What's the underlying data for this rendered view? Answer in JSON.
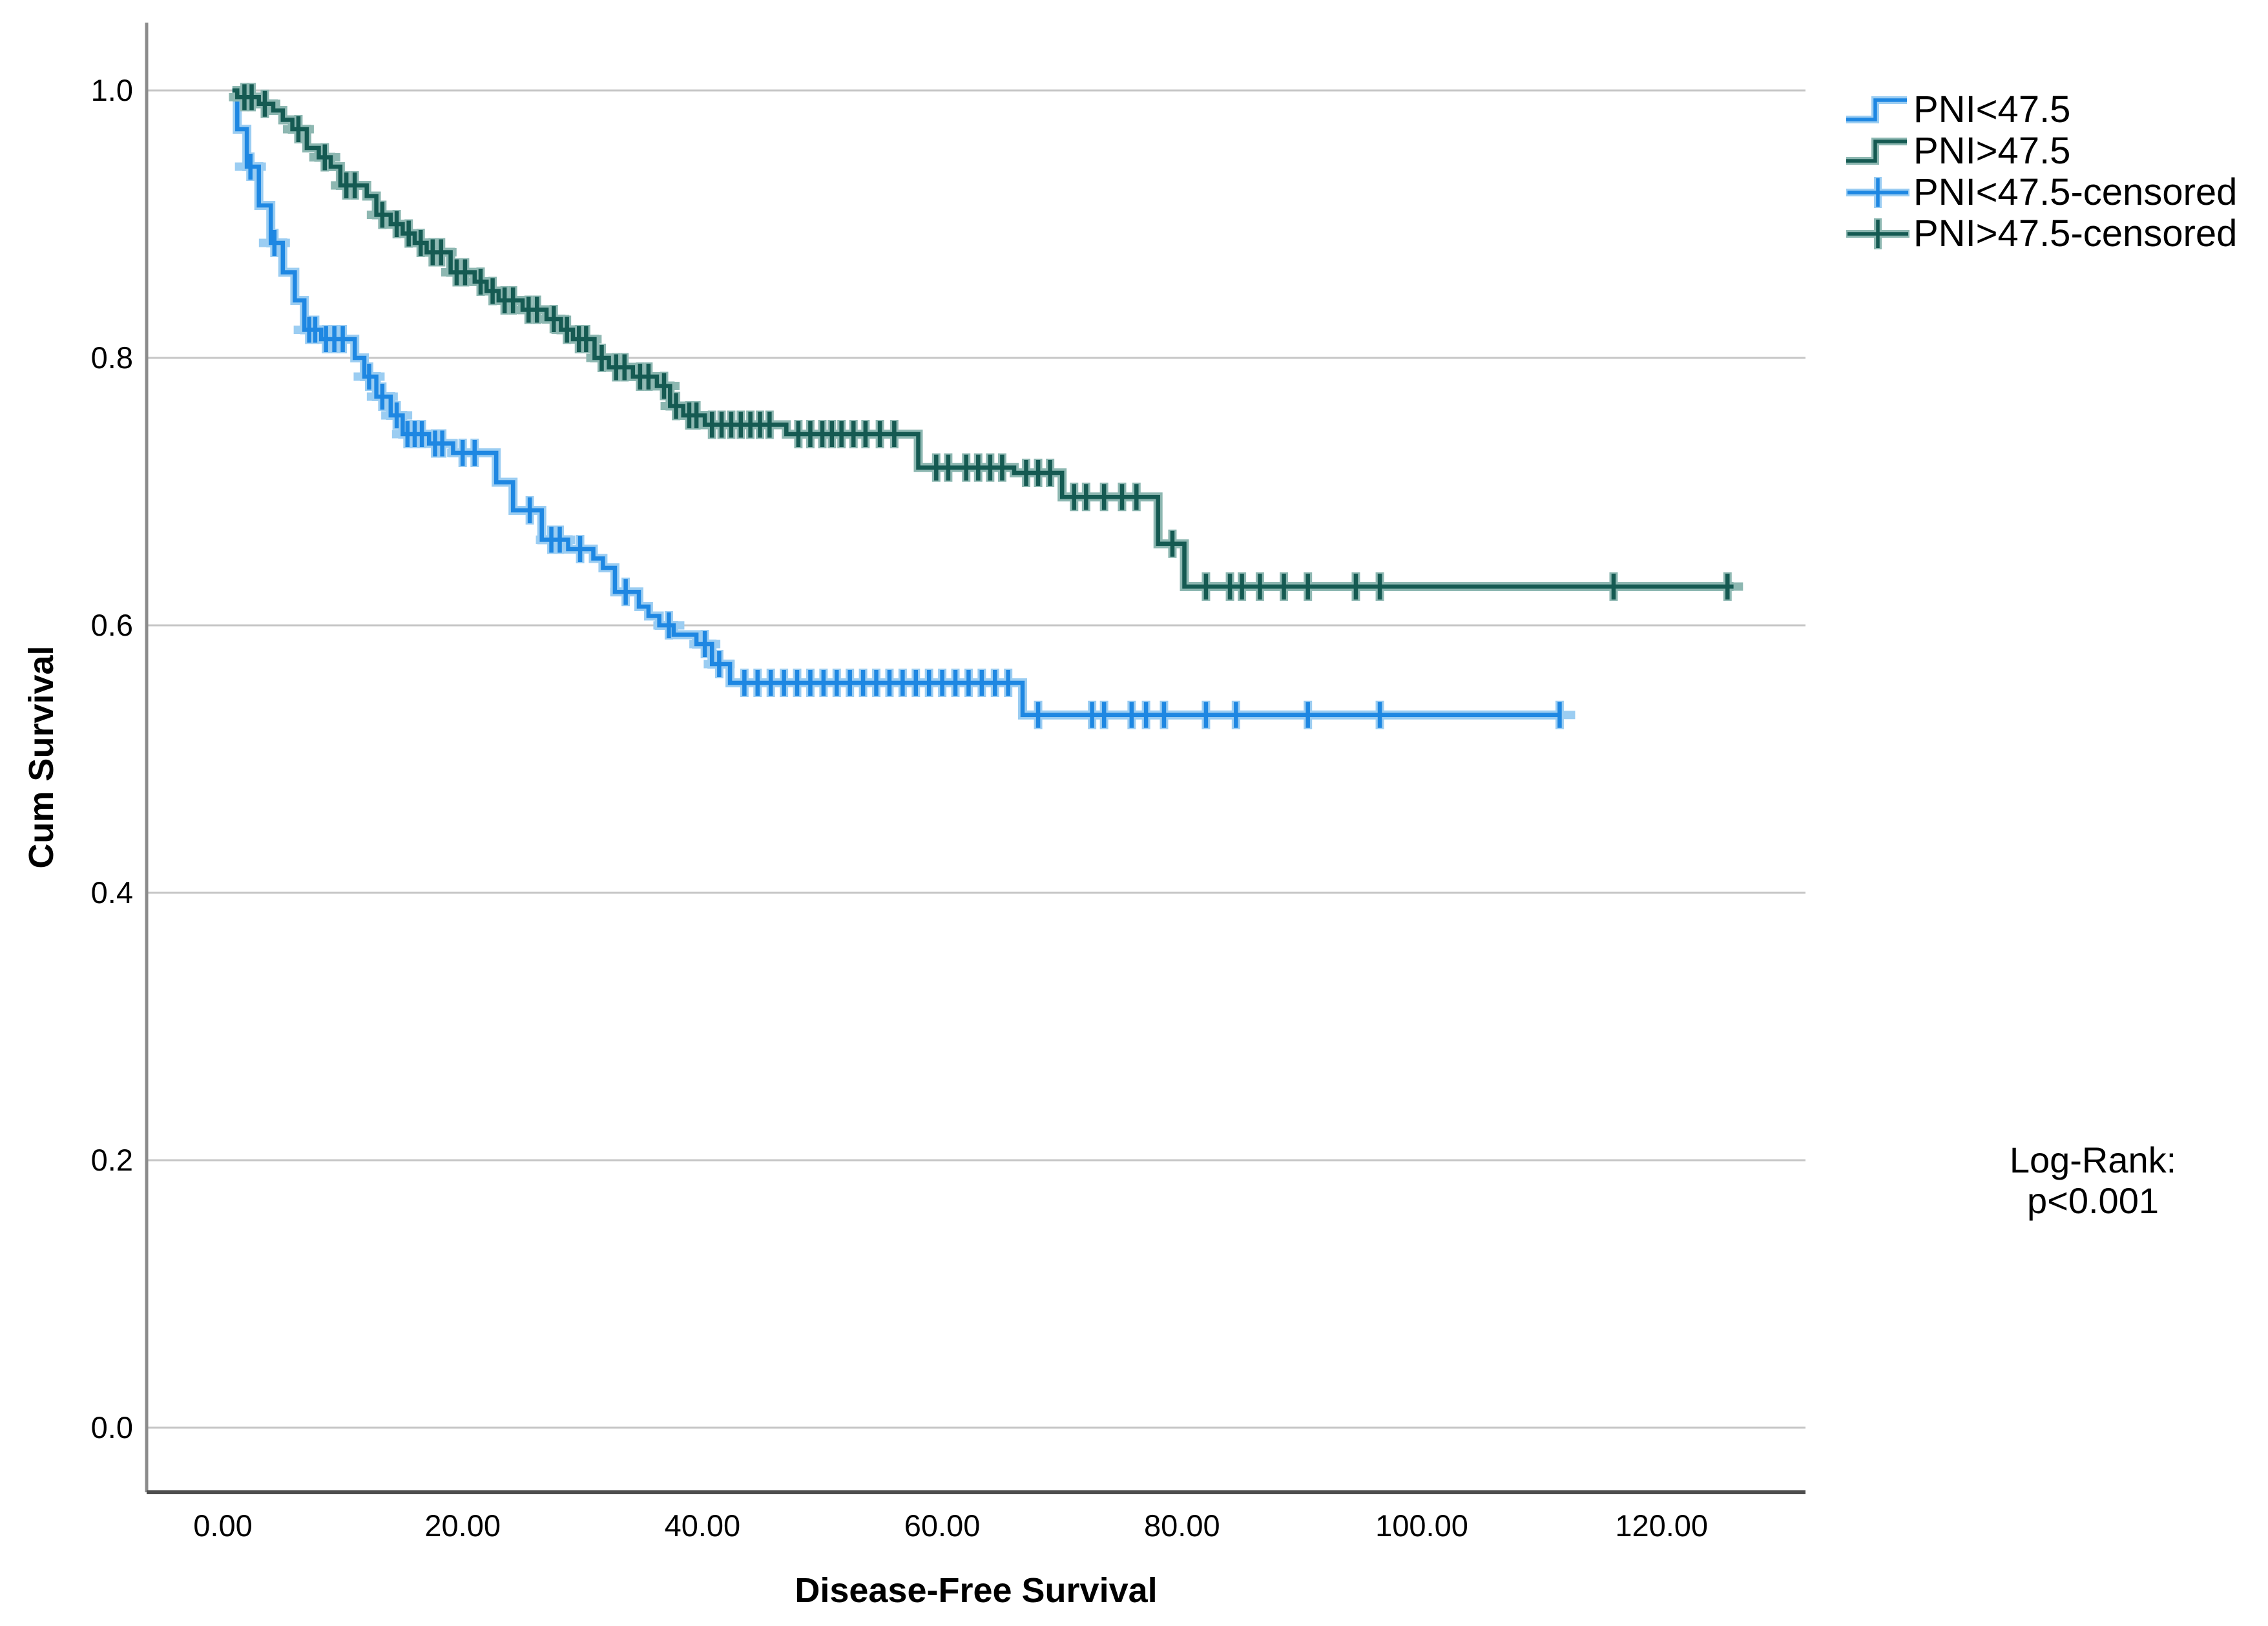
{
  "chart_data": {
    "type": "line",
    "subtype": "kaplan-meier-step",
    "title": "",
    "xlabel": "Disease-Free Survival",
    "ylabel": "Cum Survival",
    "xlim": [
      -6.4,
      132
    ],
    "ylim": [
      -0.048,
      1.05
    ],
    "grid": "horizontal-gridlines",
    "legend_position": "top-right",
    "x_ticks": [
      0,
      20,
      40,
      60,
      80,
      100,
      120
    ],
    "x_tick_labels": [
      "0.00",
      "20.00",
      "40.00",
      "60.00",
      "80.00",
      "100.00",
      "120.00"
    ],
    "y_ticks": [
      1.0,
      0.8,
      0.6,
      0.4,
      0.2,
      0.0
    ],
    "y_tick_labels": [
      "1.0",
      "0.8",
      "0.6",
      "0.4",
      "0.2",
      "0.0"
    ],
    "annotation": {
      "lines": [
        "Log-Rank:",
        "p<0.001"
      ]
    },
    "colors": {
      "blue_core": "#1e87e2",
      "blue_halo": "#9bcdf2",
      "green_core": "#155a52",
      "green_halo": "#8db7b1",
      "gridline": "#c6c6c6",
      "left_axis": "#8c8c8c",
      "bottom_axis": "#4d4d4d",
      "text": "#000000"
    },
    "legend": [
      {
        "label": "PNI<47.5",
        "marker": "step",
        "series": 0
      },
      {
        "label": "PNI>47.5",
        "marker": "step",
        "series": 1
      },
      {
        "label": "PNI<47.5-censored",
        "marker": "plus",
        "series": 0
      },
      {
        "label": "PNI>47.5-censored",
        "marker": "plus",
        "series": 1
      }
    ],
    "series": [
      {
        "name": "PNI<47.5",
        "core": "#1e87e2",
        "halo": "#9bcdf2",
        "start": [
          0.8,
          1.0
        ],
        "end_t": 111.5,
        "steps": [
          [
            1.2,
            0.971
          ],
          [
            2.0,
            0.943
          ],
          [
            3.0,
            0.914
          ],
          [
            4.0,
            0.886
          ],
          [
            5.0,
            0.864
          ],
          [
            6.0,
            0.843
          ],
          [
            6.8,
            0.821
          ],
          [
            8.2,
            0.814
          ],
          [
            11.0,
            0.8
          ],
          [
            11.8,
            0.786
          ],
          [
            12.8,
            0.771
          ],
          [
            14.0,
            0.757
          ],
          [
            15.0,
            0.743
          ],
          [
            17.2,
            0.736
          ],
          [
            19.2,
            0.729
          ],
          [
            22.8,
            0.707
          ],
          [
            24.2,
            0.686
          ],
          [
            26.6,
            0.664
          ],
          [
            28.8,
            0.657
          ],
          [
            30.9,
            0.65
          ],
          [
            31.7,
            0.643
          ],
          [
            32.7,
            0.625
          ],
          [
            34.7,
            0.614
          ],
          [
            35.5,
            0.607
          ],
          [
            36.4,
            0.6
          ],
          [
            37.6,
            0.593
          ],
          [
            39.5,
            0.586
          ],
          [
            40.8,
            0.571
          ],
          [
            42.3,
            0.557
          ],
          [
            66.7,
            0.533
          ]
        ],
        "censored": [
          [
            2.3,
            0.943
          ],
          [
            4.3,
            0.886
          ],
          [
            7.2,
            0.821
          ],
          [
            7.7,
            0.821
          ],
          [
            8.6,
            0.814
          ],
          [
            9.3,
            0.814
          ],
          [
            10.0,
            0.814
          ],
          [
            12.2,
            0.786
          ],
          [
            13.3,
            0.771
          ],
          [
            14.5,
            0.757
          ],
          [
            15.4,
            0.743
          ],
          [
            16.0,
            0.743
          ],
          [
            16.6,
            0.743
          ],
          [
            17.7,
            0.736
          ],
          [
            18.3,
            0.736
          ],
          [
            20.0,
            0.729
          ],
          [
            21.0,
            0.729
          ],
          [
            25.6,
            0.686
          ],
          [
            27.4,
            0.664
          ],
          [
            28.1,
            0.664
          ],
          [
            29.8,
            0.657
          ],
          [
            33.6,
            0.625
          ],
          [
            37.2,
            0.6
          ],
          [
            40.2,
            0.586
          ],
          [
            41.4,
            0.571
          ],
          [
            43.5,
            0.557
          ],
          [
            44.6,
            0.557
          ],
          [
            45.7,
            0.557
          ],
          [
            46.8,
            0.557
          ],
          [
            47.9,
            0.557
          ],
          [
            49.0,
            0.557
          ],
          [
            50.1,
            0.557
          ],
          [
            51.2,
            0.557
          ],
          [
            52.3,
            0.557
          ],
          [
            53.4,
            0.557
          ],
          [
            54.5,
            0.557
          ],
          [
            55.6,
            0.557
          ],
          [
            56.7,
            0.557
          ],
          [
            57.8,
            0.557
          ],
          [
            58.9,
            0.557
          ],
          [
            60.0,
            0.557
          ],
          [
            61.1,
            0.557
          ],
          [
            62.2,
            0.557
          ],
          [
            63.3,
            0.557
          ],
          [
            64.4,
            0.557
          ],
          [
            65.5,
            0.557
          ],
          [
            68.0,
            0.533
          ],
          [
            72.5,
            0.533
          ],
          [
            73.5,
            0.533
          ],
          [
            75.8,
            0.533
          ],
          [
            77.0,
            0.533
          ],
          [
            78.5,
            0.533
          ],
          [
            82.0,
            0.533
          ],
          [
            84.5,
            0.533
          ],
          [
            90.5,
            0.533
          ],
          [
            96.5,
            0.533
          ],
          [
            111.5,
            0.533
          ]
        ]
      },
      {
        "name": "PNI>47.5",
        "core": "#155a52",
        "halo": "#8db7b1",
        "start": [
          0.8,
          1.0
        ],
        "end_t": 126,
        "steps": [
          [
            1.2,
            0.995
          ],
          [
            3.0,
            0.99
          ],
          [
            4.2,
            0.985
          ],
          [
            5.0,
            0.978
          ],
          [
            5.8,
            0.971
          ],
          [
            7.0,
            0.957
          ],
          [
            8.0,
            0.95
          ],
          [
            9.0,
            0.943
          ],
          [
            9.8,
            0.929
          ],
          [
            12.0,
            0.921
          ],
          [
            12.8,
            0.907
          ],
          [
            14.0,
            0.9
          ],
          [
            15.0,
            0.893
          ],
          [
            16.0,
            0.886
          ],
          [
            17.0,
            0.879
          ],
          [
            19.0,
            0.864
          ],
          [
            21.0,
            0.857
          ],
          [
            22.0,
            0.85
          ],
          [
            23.0,
            0.843
          ],
          [
            25.0,
            0.836
          ],
          [
            27.0,
            0.829
          ],
          [
            28.2,
            0.821
          ],
          [
            29.2,
            0.814
          ],
          [
            31.0,
            0.8
          ],
          [
            32.2,
            0.793
          ],
          [
            34.2,
            0.786
          ],
          [
            36.2,
            0.779
          ],
          [
            37.3,
            0.764
          ],
          [
            38.4,
            0.757
          ],
          [
            40.2,
            0.75
          ],
          [
            47.0,
            0.743
          ],
          [
            58.0,
            0.718
          ],
          [
            66.0,
            0.714
          ],
          [
            70.0,
            0.696
          ],
          [
            78.0,
            0.661
          ],
          [
            80.2,
            0.629
          ]
        ],
        "censored": [
          [
            1.8,
            0.995
          ],
          [
            2.4,
            0.995
          ],
          [
            3.5,
            0.99
          ],
          [
            6.3,
            0.971
          ],
          [
            8.5,
            0.95
          ],
          [
            10.3,
            0.929
          ],
          [
            11.0,
            0.929
          ],
          [
            13.3,
            0.907
          ],
          [
            14.5,
            0.9
          ],
          [
            15.5,
            0.893
          ],
          [
            16.5,
            0.886
          ],
          [
            17.5,
            0.879
          ],
          [
            18.2,
            0.879
          ],
          [
            19.5,
            0.864
          ],
          [
            20.2,
            0.864
          ],
          [
            21.5,
            0.857
          ],
          [
            22.5,
            0.85
          ],
          [
            23.5,
            0.843
          ],
          [
            24.2,
            0.843
          ],
          [
            25.5,
            0.836
          ],
          [
            26.2,
            0.836
          ],
          [
            27.6,
            0.829
          ],
          [
            28.7,
            0.821
          ],
          [
            29.7,
            0.814
          ],
          [
            30.3,
            0.814
          ],
          [
            31.6,
            0.8
          ],
          [
            32.8,
            0.793
          ],
          [
            33.5,
            0.793
          ],
          [
            34.8,
            0.786
          ],
          [
            35.5,
            0.786
          ],
          [
            36.8,
            0.779
          ],
          [
            37.8,
            0.764
          ],
          [
            38.9,
            0.757
          ],
          [
            39.5,
            0.757
          ],
          [
            40.8,
            0.75
          ],
          [
            41.6,
            0.75
          ],
          [
            42.4,
            0.75
          ],
          [
            43.2,
            0.75
          ],
          [
            44.0,
            0.75
          ],
          [
            44.8,
            0.75
          ],
          [
            45.6,
            0.75
          ],
          [
            48.0,
            0.743
          ],
          [
            49.0,
            0.743
          ],
          [
            50.0,
            0.743
          ],
          [
            50.8,
            0.743
          ],
          [
            51.6,
            0.743
          ],
          [
            52.6,
            0.743
          ],
          [
            53.6,
            0.743
          ],
          [
            54.8,
            0.743
          ],
          [
            56.0,
            0.743
          ],
          [
            59.5,
            0.718
          ],
          [
            60.5,
            0.718
          ],
          [
            62.0,
            0.718
          ],
          [
            63.0,
            0.718
          ],
          [
            64.0,
            0.718
          ],
          [
            65.0,
            0.718
          ],
          [
            67.0,
            0.714
          ],
          [
            68.0,
            0.714
          ],
          [
            69.0,
            0.714
          ],
          [
            71.0,
            0.696
          ],
          [
            72.0,
            0.696
          ],
          [
            73.5,
            0.696
          ],
          [
            75.0,
            0.696
          ],
          [
            76.2,
            0.696
          ],
          [
            79.2,
            0.661
          ],
          [
            82.0,
            0.629
          ],
          [
            84.0,
            0.629
          ],
          [
            85.0,
            0.629
          ],
          [
            86.5,
            0.629
          ],
          [
            88.5,
            0.629
          ],
          [
            90.5,
            0.629
          ],
          [
            94.5,
            0.629
          ],
          [
            96.5,
            0.629
          ],
          [
            116.0,
            0.629
          ],
          [
            125.5,
            0.629
          ]
        ]
      }
    ]
  }
}
